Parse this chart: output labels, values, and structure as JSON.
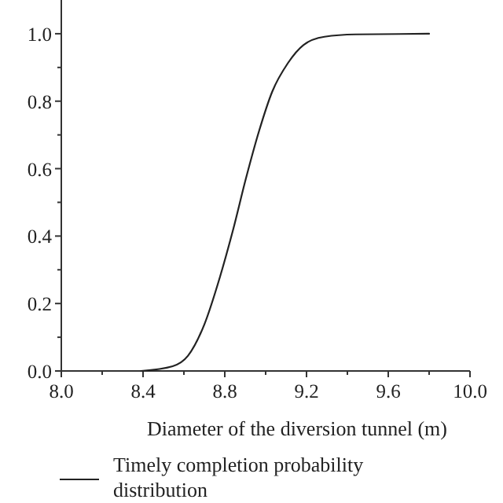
{
  "chart_data": {
    "type": "line",
    "xlabel": "Diameter of the diversion tunnel (m)",
    "x": [
      8.39,
      8.545,
      8.62,
      8.7,
      8.776,
      8.84,
      8.904,
      8.968,
      9.032,
      9.109,
      9.186,
      9.288,
      9.44,
      9.8
    ],
    "series": [
      {
        "name": "Timely completion probability distribution",
        "color": "#222222",
        "values": [
          0,
          0.014,
          0.045,
          0.138,
          0.278,
          0.417,
          0.572,
          0.712,
          0.828,
          0.913,
          0.967,
          0.991,
          0.998,
          1.0
        ]
      }
    ],
    "xlim": [
      8.0,
      10.0
    ],
    "ylim": [
      0,
      1.1
    ],
    "xticks": [
      {
        "value": 8,
        "label": "8.0"
      },
      {
        "value": 8.2,
        "label": null
      },
      8.4,
      {
        "value": 8.6,
        "label": null
      },
      8.8,
      {
        "value": 9.0,
        "label": null
      },
      9.2,
      {
        "value": 9.4,
        "label": null
      },
      9.6,
      {
        "value": 9.8,
        "label": null
      },
      {
        "value": 10,
        "label": "10.0"
      }
    ],
    "yticks": [
      {
        "value": 0,
        "label": "0.0"
      },
      {
        "value": 0.1,
        "label": null
      },
      0.2,
      {
        "value": 0.3,
        "label": null
      },
      0.4,
      {
        "value": 0.5,
        "label": null
      },
      0.6,
      {
        "value": 0.7,
        "label": null
      },
      0.8,
      {
        "value": 0.9,
        "label": null
      },
      {
        "value": 1,
        "label": "1.0"
      }
    ],
    "grid": false,
    "legend": "bottom",
    "marker": "none",
    "line_style": "solid"
  }
}
